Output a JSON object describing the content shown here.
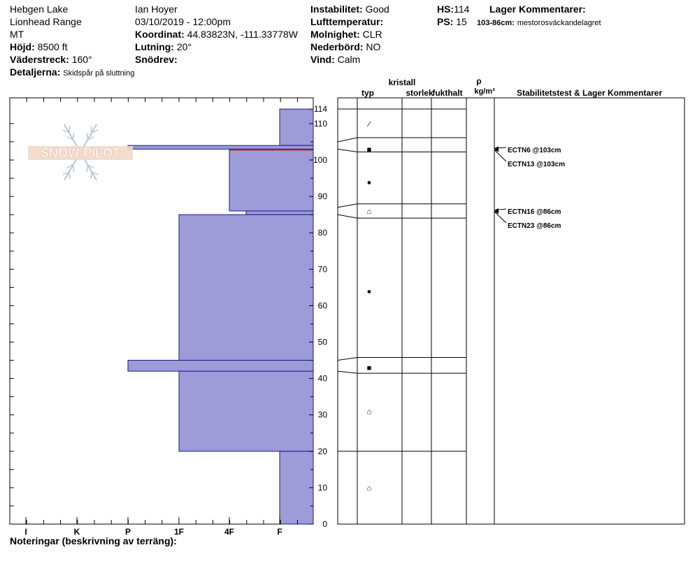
{
  "header": {
    "location": "Hebgen Lake",
    "range": "Lionhead Range",
    "state": "MT",
    "elevation_label": "Höjd:",
    "elevation_value": "8500 ft",
    "aspect_label": "Väderstreck:",
    "aspect_value": "160°",
    "details_label": "Detaljerna:",
    "details_value": "Skidspår på sluttning",
    "observer": "Ian Hoyer",
    "datetime": "03/10/2019 - 12:00pm",
    "coord_label": "Koordinat:",
    "coord_value": "44.83823N, -111.33778W",
    "slope_label": "Lutning:",
    "slope_value": "20°",
    "drift_label": "Snödrev:",
    "drift_value": "",
    "stability_label": "Instabilitet:",
    "stability_value": "Good",
    "airtemp_label": "Lufttemperatur:",
    "airtemp_value": "",
    "sky_label": "Molnighet:",
    "sky_value": "CLR",
    "precip_label": "Nederbörd:",
    "precip_value": "NO",
    "wind_label": "Vind:",
    "wind_value": "Calm",
    "hs_label": "HS:",
    "hs_value": "114",
    "ps_label": "PS:",
    "ps_value": "15",
    "layer_comments_label": "Lager Kommentarer:",
    "layer_comment_range": "103-86cm:",
    "layer_comment_text": "mestorosväckandelagret"
  },
  "notes_label": "Noteringar (beskrivning av terräng):",
  "logo_text": "SNOW PILOT",
  "columns": {
    "typ": "typ",
    "kristall": "kristall",
    "storlek": "storlek",
    "fukthalt": "fukthalt",
    "rho": "ρ",
    "density_unit": "kg/m³",
    "stability": "Stabilitetstest & Lager Kommentarer"
  },
  "colors": {
    "layer_fill": "#9d9bd8",
    "layer_stroke": "#1a1a8a",
    "weak_layer": "#b22222"
  },
  "chart_data": {
    "type": "bar",
    "hardness_ticks": [
      "I",
      "K",
      "P",
      "1F",
      "4F",
      "F"
    ],
    "height_ticks": [
      0,
      10,
      20,
      30,
      40,
      50,
      60,
      70,
      80,
      90,
      100,
      110,
      114
    ],
    "ylim": [
      0,
      114
    ],
    "layers": [
      {
        "top": 114,
        "bottom": 104,
        "hardness": "F"
      },
      {
        "top": 104,
        "bottom": 103,
        "hardness": "P"
      },
      {
        "top": 103,
        "bottom": 86,
        "hardness": "4F"
      },
      {
        "top": 86,
        "bottom": 85,
        "hardness": "4F-"
      },
      {
        "top": 85,
        "bottom": 45,
        "hardness": "1F"
      },
      {
        "top": 45,
        "bottom": 42,
        "hardness": "P"
      },
      {
        "top": 42,
        "bottom": 20,
        "hardness": "1F"
      },
      {
        "top": 20,
        "bottom": 0,
        "hardness": "F"
      }
    ],
    "layer_boundaries": [
      114,
      105,
      103,
      87,
      85,
      45,
      42,
      20
    ],
    "weak_layer_height": 103,
    "grain_symbols": [
      {
        "height": 110,
        "symbol": "⁄"
      },
      {
        "height": 103,
        "symbol": "■"
      },
      {
        "height": 94,
        "symbol": "●"
      },
      {
        "height": 86,
        "symbol": "⌂"
      },
      {
        "height": 64,
        "symbol": "●"
      },
      {
        "height": 43,
        "symbol": "■"
      },
      {
        "height": 31,
        "symbol": "⌂"
      },
      {
        "height": 10,
        "symbol": "⌂"
      }
    ],
    "tests": [
      {
        "label": "ECTN6 @103cm",
        "height": 103
      },
      {
        "label": "ECTN13 @103cm",
        "height": 103
      },
      {
        "label": "ECTN16 @86cm",
        "height": 86
      },
      {
        "label": "ECTN23 @86cm",
        "height": 86
      }
    ]
  }
}
